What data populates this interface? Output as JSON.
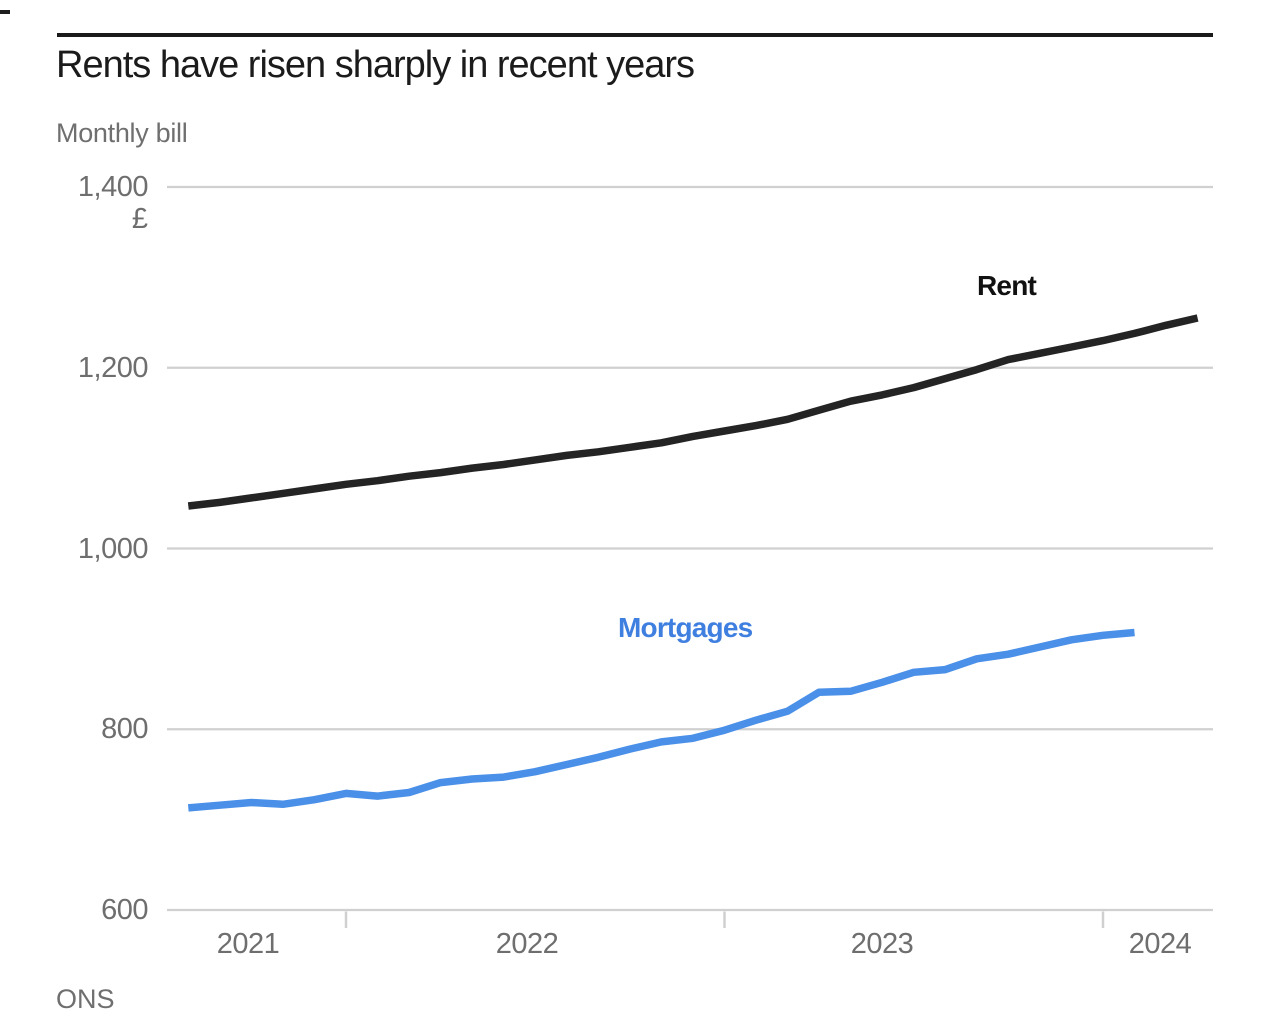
{
  "header": {
    "title": "Rents have risen sharply in recent years",
    "subtitle": "Monthly bill"
  },
  "source": "ONS",
  "palette": {
    "rent_line": "#242424",
    "mortgages_line": "#4a90e8",
    "mortgages_label": "#3f7fe0",
    "gridline": "#d0d0d0",
    "axis_text": "#6e6e6e",
    "title_text": "#1b1b1b",
    "rule": "#1a1a1a"
  },
  "chart_data": {
    "type": "line",
    "title": "Rents have risen sharply in recent years",
    "subtitle": "Monthly bill",
    "unit": "£",
    "ylabel": "Monthly bill (£)",
    "ylim": [
      600,
      1400
    ],
    "yticks": [
      1400,
      1200,
      1000,
      800,
      600
    ],
    "ytick_labels": [
      "1,400",
      "1,200",
      "1,000",
      "800",
      "600"
    ],
    "xtick_labels": [
      "2021",
      "2022",
      "2023",
      "2024"
    ],
    "x_frequency": "monthly",
    "x_start": "2021-08",
    "grid": "horizontal",
    "legend_position": "inline-labels",
    "series": [
      {
        "name": "Rent",
        "color": "#242424",
        "start": "2021-08",
        "end": "2024-04",
        "values": [
          1047,
          1051,
          1056,
          1061,
          1066,
          1071,
          1075,
          1080,
          1084,
          1089,
          1093,
          1098,
          1103,
          1107,
          1112,
          1117,
          1124,
          1130,
          1136,
          1143,
          1153,
          1163,
          1170,
          1178,
          1188,
          1198,
          1209,
          1216,
          1223,
          1230,
          1238,
          1247,
          1255
        ]
      },
      {
        "name": "Mortgages",
        "color": "#4a90e8",
        "start": "2021-08",
        "end": "2024-02",
        "values": [
          713,
          716,
          719,
          717,
          722,
          729,
          726,
          730,
          741,
          745,
          747,
          753,
          761,
          769,
          778,
          786,
          790,
          799,
          810,
          820,
          841,
          842,
          852,
          863,
          866,
          878,
          883,
          891,
          899,
          904,
          907
        ]
      }
    ]
  }
}
